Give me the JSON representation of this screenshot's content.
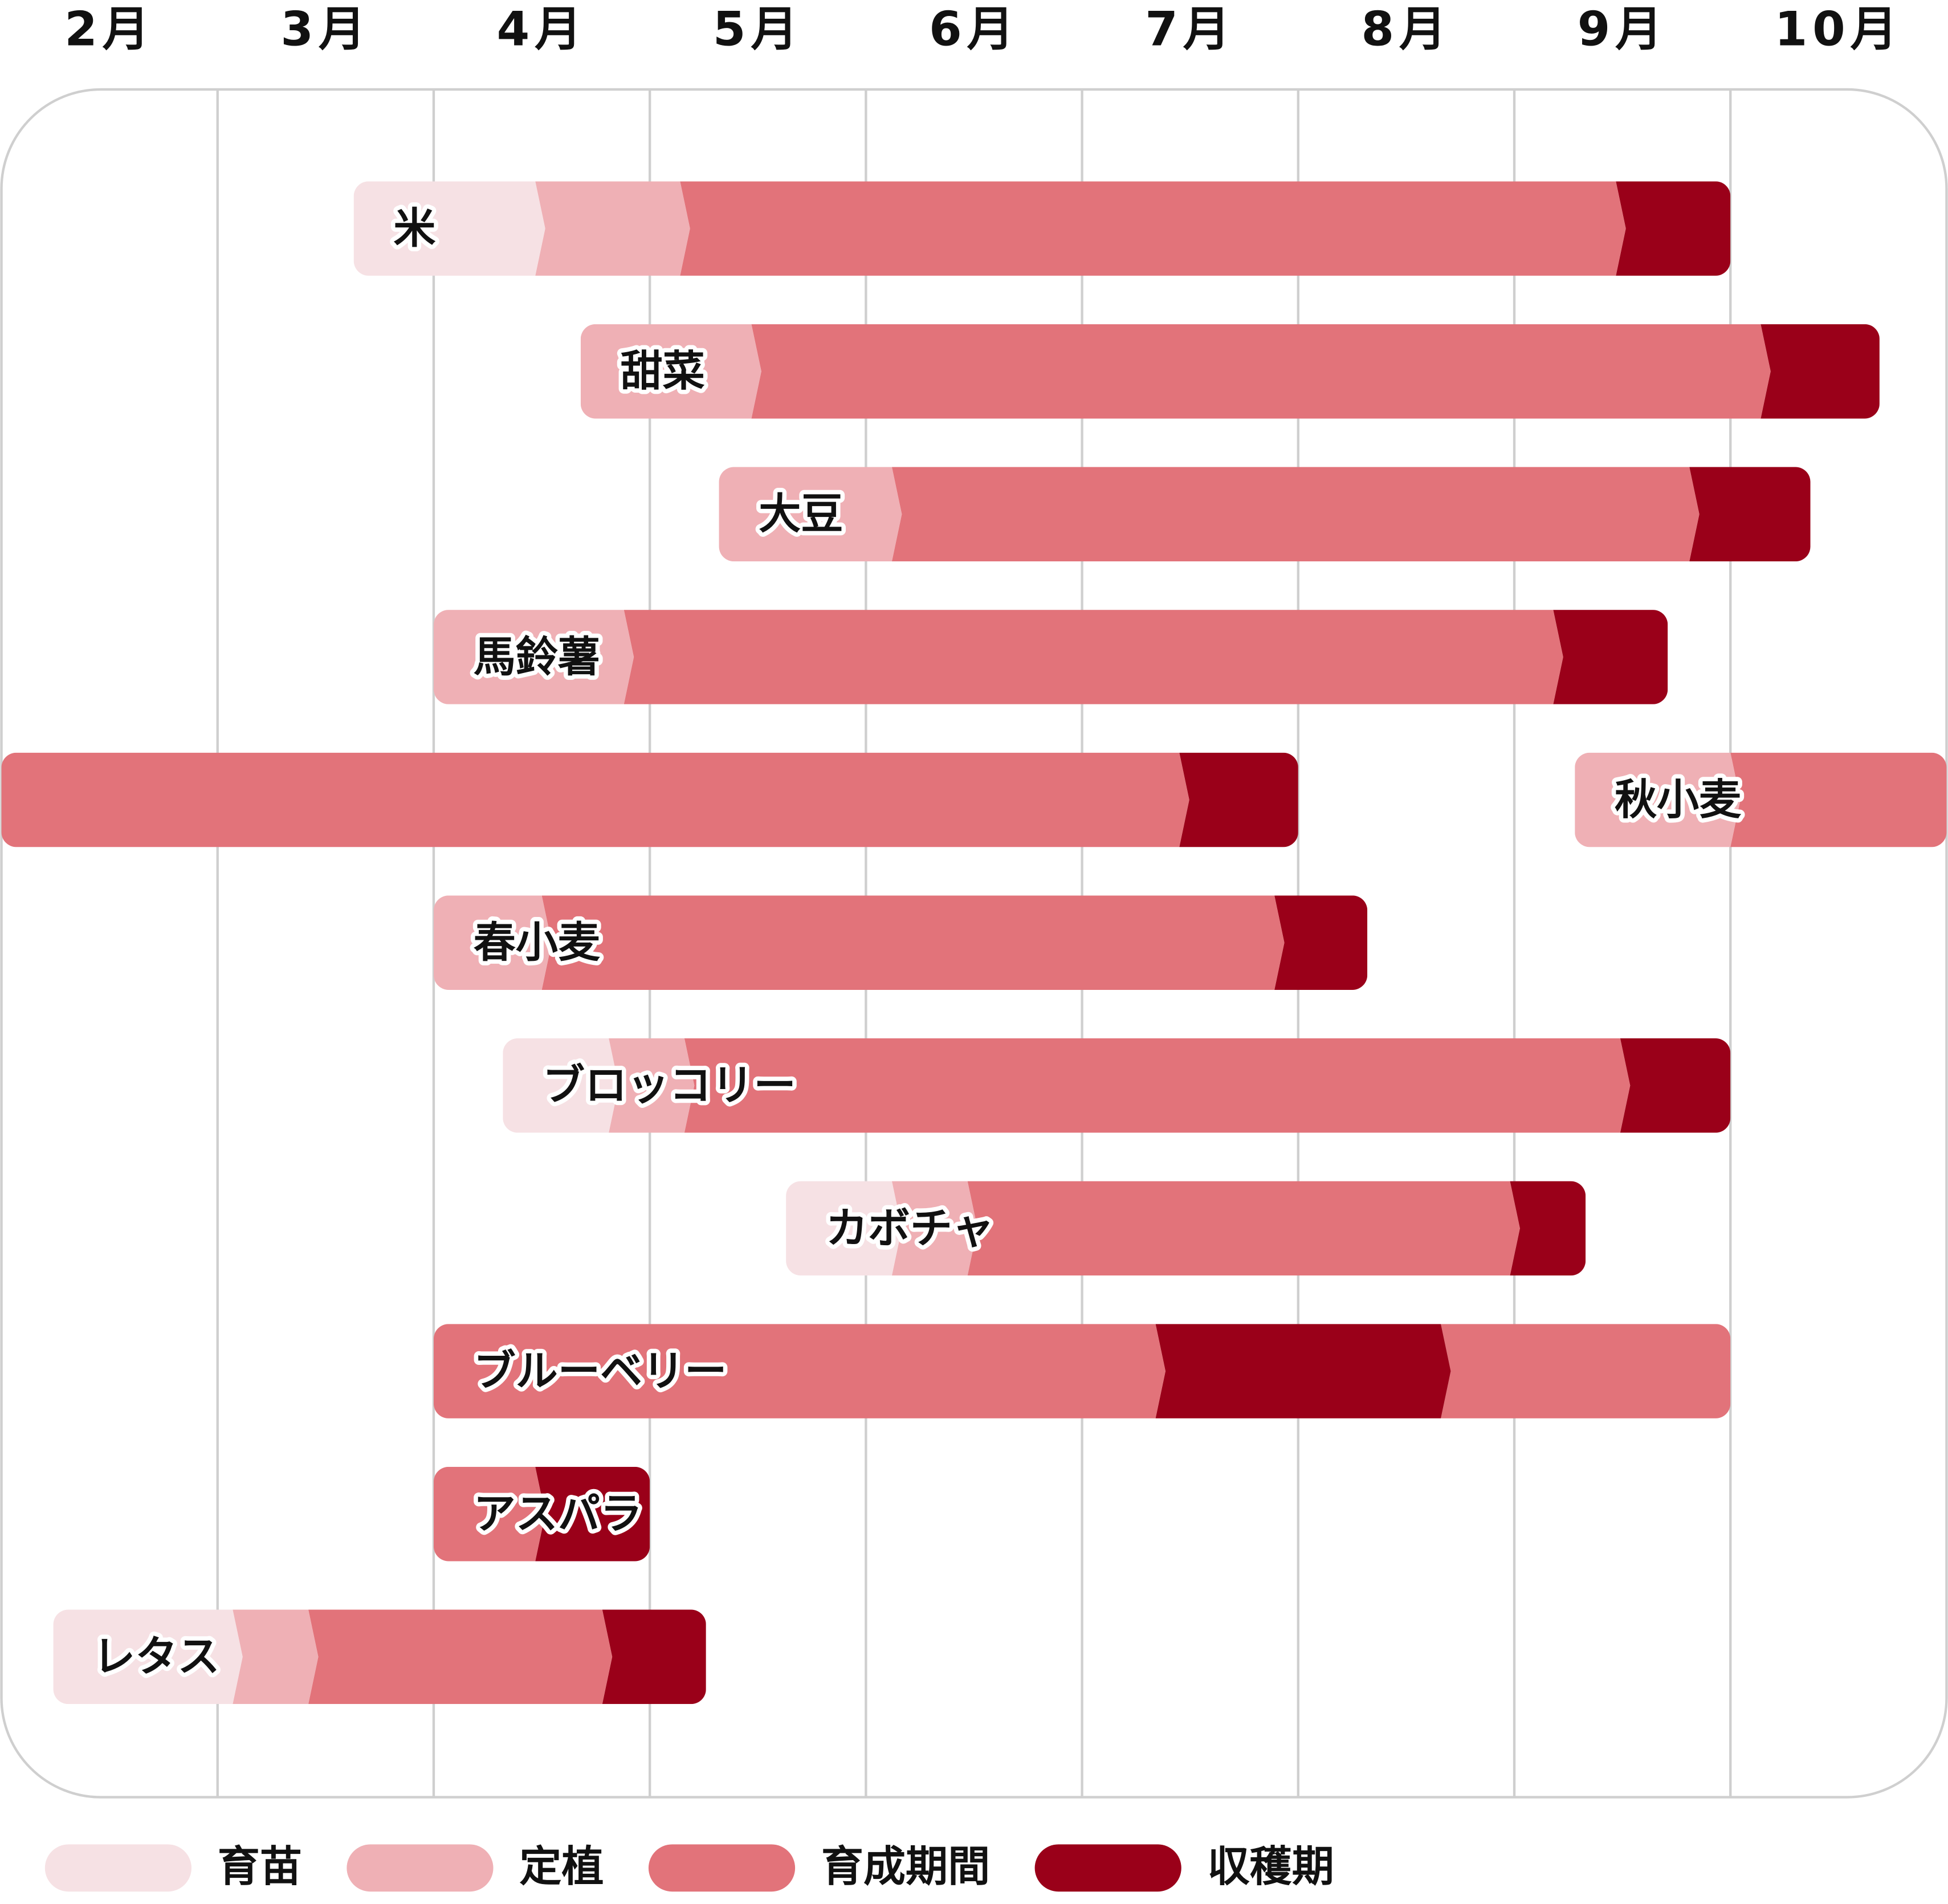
{
  "chart_data": {
    "type": "gantt",
    "months": [
      "2月",
      "3月",
      "4月",
      "5月",
      "6月",
      "7月",
      "8月",
      "9月",
      "10月"
    ],
    "xlim": [
      2,
      11
    ],
    "phases": [
      {
        "name": "育苗",
        "color": "#f6e1e4"
      },
      {
        "name": "定植",
        "color": "#efb0b5"
      },
      {
        "name": "育成期間",
        "color": "#e2737a"
      },
      {
        "name": "収穫期",
        "color": "#9a0019"
      }
    ],
    "tasks": [
      {
        "name": "米",
        "segments": [
          {
            "phase": 0,
            "start": 3.63,
            "end": 4.47
          },
          {
            "phase": 1,
            "start": 4.47,
            "end": 5.14
          },
          {
            "phase": 2,
            "start": 5.14,
            "end": 9.47
          },
          {
            "phase": 3,
            "start": 9.47,
            "end": 10.0
          }
        ]
      },
      {
        "name": "甜菜",
        "segments": [
          {
            "phase": 1,
            "start": 4.68,
            "end": 5.47
          },
          {
            "phase": 2,
            "start": 5.47,
            "end": 10.14
          },
          {
            "phase": 3,
            "start": 10.14,
            "end": 10.69
          }
        ]
      },
      {
        "name": "大豆",
        "segments": [
          {
            "phase": 1,
            "start": 5.32,
            "end": 6.12
          },
          {
            "phase": 2,
            "start": 6.12,
            "end": 9.81
          },
          {
            "phase": 3,
            "start": 9.81,
            "end": 10.37
          }
        ]
      },
      {
        "name": "馬鈴薯",
        "segments": [
          {
            "phase": 1,
            "start": 4.0,
            "end": 4.88
          },
          {
            "phase": 2,
            "start": 4.88,
            "end": 9.18
          },
          {
            "phase": 3,
            "start": 9.18,
            "end": 9.71
          }
        ]
      },
      {
        "name": "秋小麦",
        "segments": [
          {
            "phase": 1,
            "start": 9.28,
            "end": 10.0
          },
          {
            "phase": 2,
            "start": 10.0,
            "end": 11.0
          },
          {
            "phase": 2,
            "start": 2.0,
            "end": 7.45
          },
          {
            "phase": 3,
            "start": 7.45,
            "end": 8.0
          }
        ]
      },
      {
        "name": "春小麦",
        "segments": [
          {
            "phase": 1,
            "start": 4.0,
            "end": 4.5
          },
          {
            "phase": 2,
            "start": 4.5,
            "end": 7.89
          },
          {
            "phase": 3,
            "start": 7.89,
            "end": 8.32
          }
        ]
      },
      {
        "name": "ブロッコリー",
        "segments": [
          {
            "phase": 0,
            "start": 4.32,
            "end": 4.81
          },
          {
            "phase": 1,
            "start": 4.81,
            "end": 5.16
          },
          {
            "phase": 2,
            "start": 5.16,
            "end": 9.49
          },
          {
            "phase": 3,
            "start": 9.49,
            "end": 10.0
          }
        ]
      },
      {
        "name": "カボチャ",
        "segments": [
          {
            "phase": 0,
            "start": 5.63,
            "end": 6.12
          },
          {
            "phase": 1,
            "start": 6.12,
            "end": 6.47
          },
          {
            "phase": 2,
            "start": 6.47,
            "end": 8.98
          },
          {
            "phase": 3,
            "start": 8.98,
            "end": 9.33
          }
        ]
      },
      {
        "name": "ブルーベリー",
        "segments": [
          {
            "phase": 2,
            "start": 4.0,
            "end": 7.34
          },
          {
            "phase": 3,
            "start": 7.34,
            "end": 8.66
          },
          {
            "phase": 2,
            "start": 8.66,
            "end": 10.0
          }
        ]
      },
      {
        "name": "アスパラ",
        "segments": [
          {
            "phase": 2,
            "start": 4.0,
            "end": 4.47
          },
          {
            "phase": 3,
            "start": 4.47,
            "end": 5.0
          }
        ]
      },
      {
        "name": "レタス",
        "segments": [
          {
            "phase": 0,
            "start": 2.24,
            "end": 3.07
          },
          {
            "phase": 1,
            "start": 3.07,
            "end": 3.42
          },
          {
            "phase": 2,
            "start": 3.42,
            "end": 4.78
          },
          {
            "phase": 3,
            "start": 4.78,
            "end": 5.26
          }
        ]
      }
    ]
  }
}
